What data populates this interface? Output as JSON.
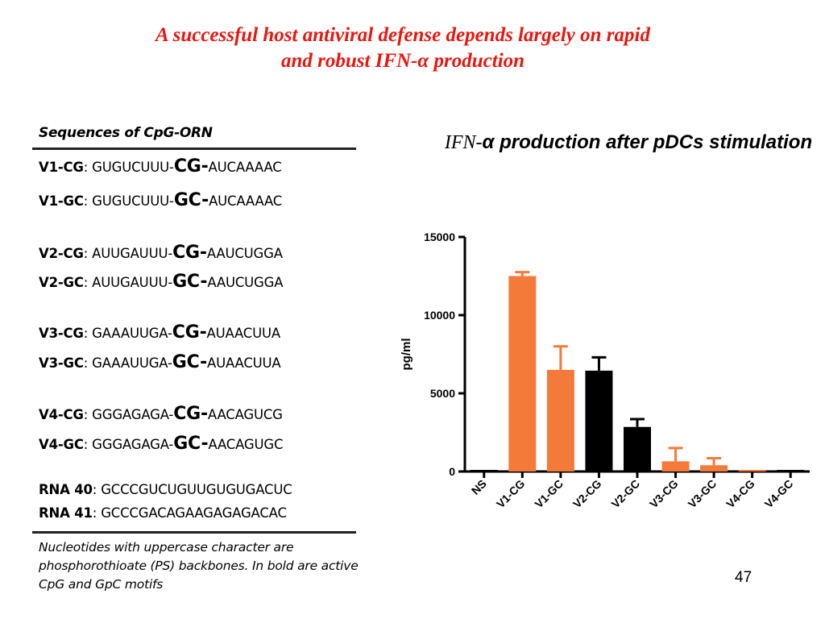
{
  "slide": {
    "title_line1": "A successful host antiviral defense depends largely on rapid",
    "title_line2": "and robust IFN-α production",
    "page_number": "47"
  },
  "sequences": {
    "heading": "Sequences of CpG-ORN",
    "rows": [
      {
        "name": "V1-CG",
        "prefix": "GUGUCUUU-",
        "motif": "CG-",
        "suffix": "AUCAAAAC"
      },
      {
        "name": "V1-GC",
        "prefix": "GUGUCUUU-",
        "motif": "GC-",
        "suffix": "AUCAAAAC"
      },
      {
        "name": "V2-CG",
        "prefix": "AUUGAUUU-",
        "motif": "CG-",
        "suffix": "AAUCUGGA"
      },
      {
        "name": "V2-GC",
        "prefix": "AUUGAUUU-",
        "motif": "GC-",
        "suffix": "AAUCUGGA"
      },
      {
        "name": "V3-CG",
        "prefix": "GAAAUUGA-",
        "motif": "CG-",
        "suffix": "AUAACUUA"
      },
      {
        "name": "V3-GC",
        "prefix": "GAAAUUGA-",
        "motif": "GC-",
        "suffix": "AUAACUUA"
      },
      {
        "name": "V4-CG",
        "prefix": "GGGAGAGA-",
        "motif": "CG-",
        "suffix": "AACAGUCG"
      },
      {
        "name": "V4-GC",
        "prefix": "GGGAGAGA-",
        "motif": "GC-",
        "suffix": "AACAGUGC"
      },
      {
        "name": "RNA 40",
        "prefix": "GCCCGUCUGUUGUGUGACUC",
        "motif": "",
        "suffix": ""
      },
      {
        "name": "RNA 41",
        "prefix": "GCCCGACAGAAGAGAGACAC",
        "motif": "",
        "suffix": ""
      }
    ],
    "separator": ": ",
    "note": "Nucleotides with uppercase character are phosphorothioate (PS) backbones. In bold are active CpG and GpC motifs"
  },
  "chart_data": {
    "type": "bar",
    "title_part1": "IFN-",
    "title_part2": "α production after pDCs stimulation",
    "ylabel": "pg/ml",
    "xlabel": "",
    "ylim": [
      0,
      15000
    ],
    "yticks": [
      0,
      5000,
      10000,
      15000
    ],
    "categories": [
      "NS",
      "V1-CG",
      "V1-GC",
      "V2-CG",
      "V2-GC",
      "V3-CG",
      "V3-GC",
      "V4-CG",
      "V4-GC"
    ],
    "values": [
      0,
      12500,
      6500,
      6450,
      2850,
      650,
      400,
      0,
      0
    ],
    "errors": [
      0,
      250,
      1500,
      850,
      500,
      850,
      450,
      0,
      0
    ],
    "colors": [
      "#000000",
      "#f47a3a",
      "#f47a3a",
      "#000000",
      "#000000",
      "#f47a3a",
      "#f47a3a",
      "#f47a3a",
      "#000000"
    ],
    "grid": false,
    "legend": "none"
  }
}
